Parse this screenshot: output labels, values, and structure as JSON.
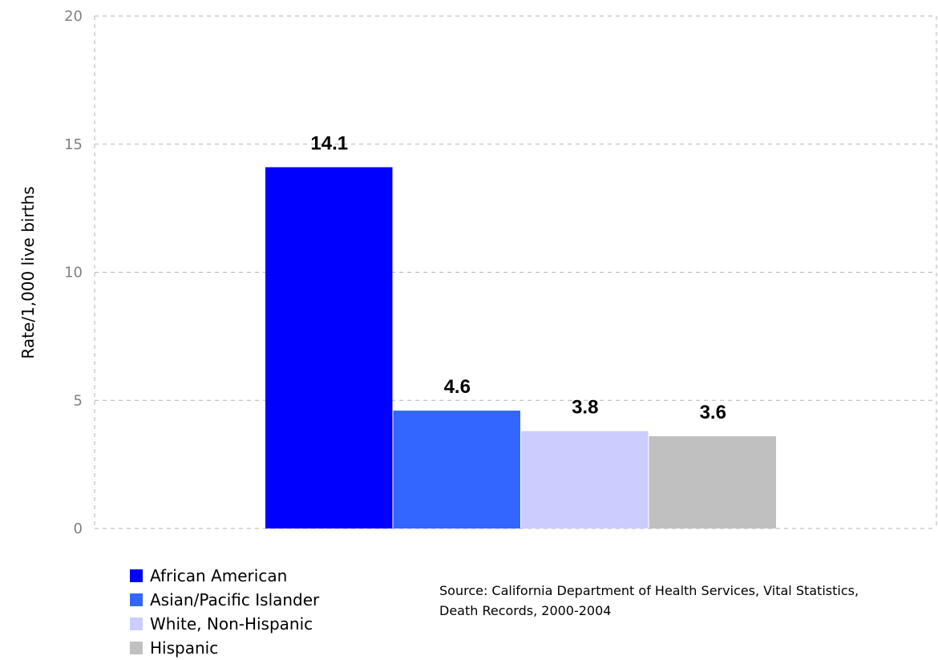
{
  "chart_data": {
    "type": "bar",
    "categories": [
      "African American",
      "Asian/Pacific Islander",
      "White, Non-Hispanic",
      "Hispanic"
    ],
    "series": [
      {
        "values": [
          14.1,
          4.6,
          3.8,
          3.6
        ]
      }
    ],
    "data_labels": [
      "14.1",
      "4.6",
      "3.8",
      "3.6"
    ],
    "colors": [
      "#0000ff",
      "#3366ff",
      "#ccccff",
      "#c0c0c0"
    ],
    "ylabel": "Rate/1,000 live births",
    "ylim": [
      0,
      20
    ],
    "y_ticks": [
      "0",
      "5",
      "10",
      "15",
      "20"
    ],
    "grid": "dashed horizontal and vertical",
    "legend_position": "bottom-left"
  },
  "legend": {
    "items": [
      {
        "label": "African American",
        "color": "#0000ff"
      },
      {
        "label": "Asian/Pacific Islander",
        "color": "#3366ff"
      },
      {
        "label": "White, Non-Hispanic",
        "color": "#ccccff"
      },
      {
        "label": "Hispanic",
        "color": "#c0c0c0"
      }
    ]
  },
  "source": {
    "text": "Source: California Department of Health Services, Vital Statistics, Death Records, 2000-2004"
  }
}
